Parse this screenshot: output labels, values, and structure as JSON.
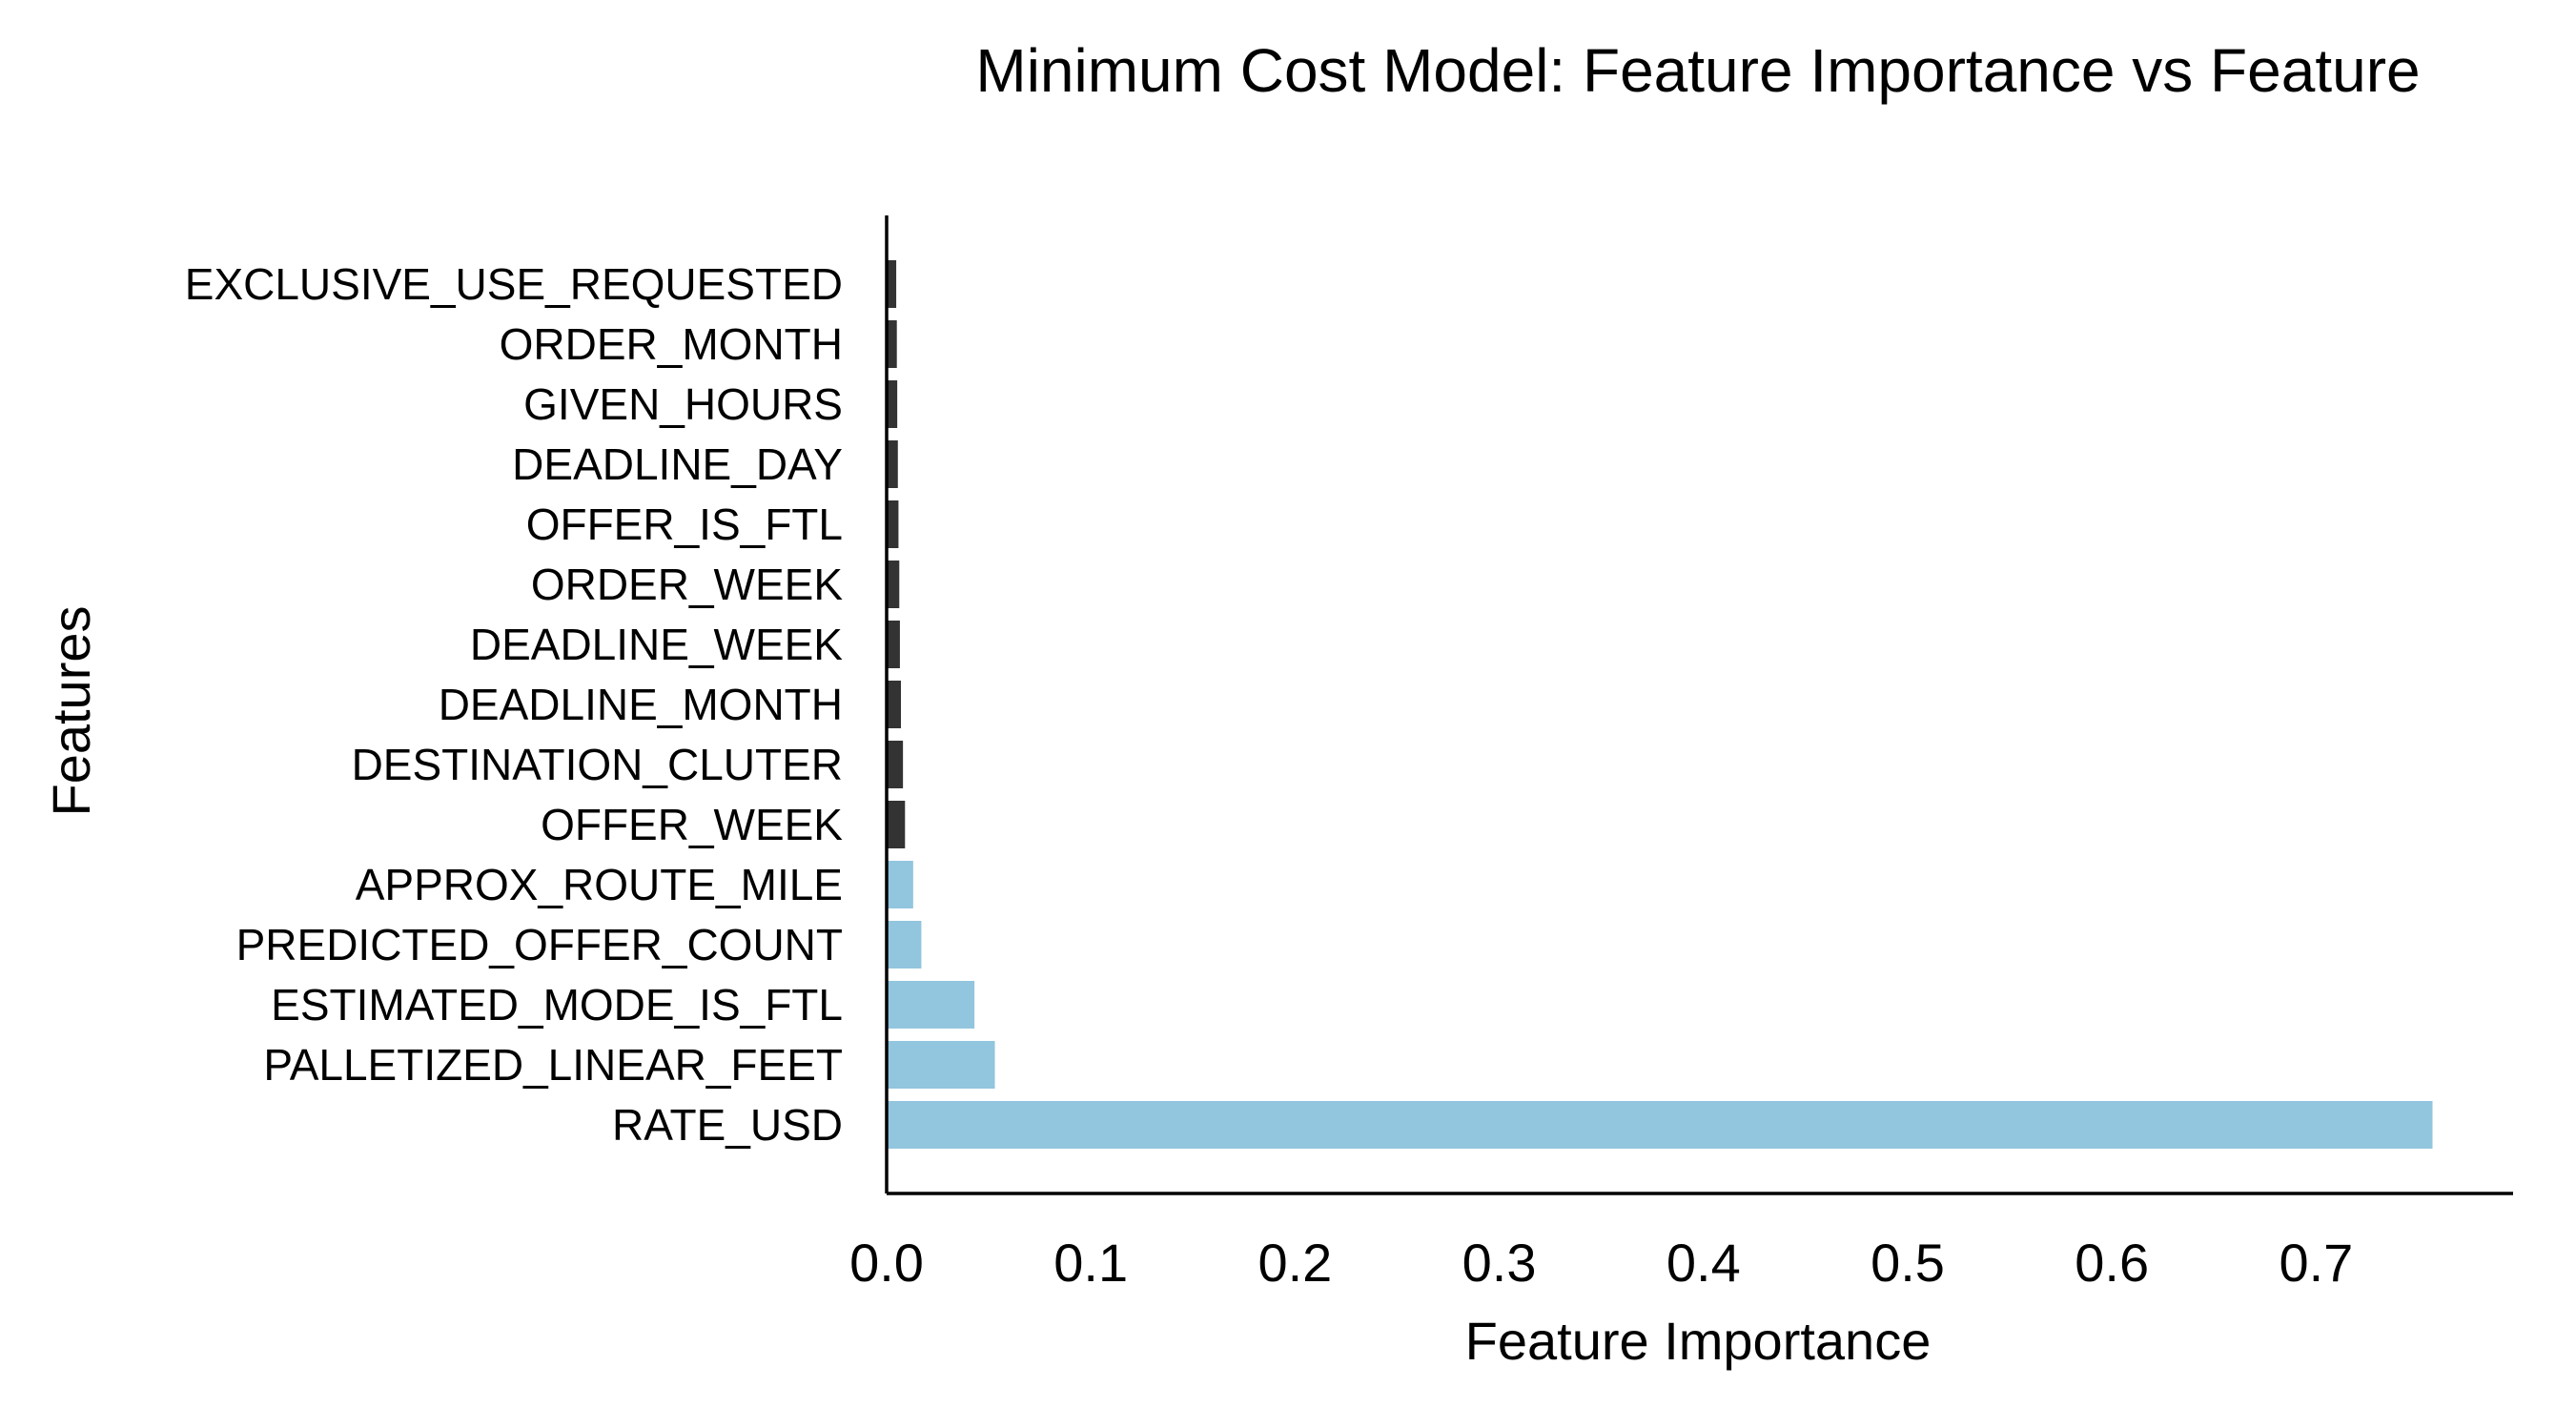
{
  "chart_data": {
    "type": "bar",
    "orientation": "horizontal",
    "title": "Minimum Cost Model: Feature Importance vs Feature",
    "xlabel": "Feature Importance",
    "ylabel": "Features",
    "xlim": [
      0,
      0.8
    ],
    "x_ticks": [
      "0.0",
      "0.1",
      "0.2",
      "0.3",
      "0.4",
      "0.5",
      "0.6",
      "0.7"
    ],
    "grid": false,
    "colors": {
      "top": "#92c5de",
      "rest": "#333333"
    },
    "categories": [
      "RATE_USD",
      "PALLETIZED_LINEAR_FEET",
      "ESTIMATED_MODE_IS_FTL",
      "PREDICTED_OFFER_COUNT",
      "APPROX_ROUTE_MILE",
      "OFFER_WEEK",
      "DESTINATION_CLUTER",
      "DEADLINE_MONTH",
      "DEADLINE_WEEK",
      "ORDER_WEEK",
      "OFFER_IS_FTL",
      "DEADLINE_DAY",
      "GIVEN_HOURS",
      "ORDER_MONTH",
      "EXCLUSIVE_USE_REQUESTED"
    ],
    "values": [
      0.757,
      0.053,
      0.043,
      0.017,
      0.013,
      0.009,
      0.008,
      0.007,
      0.0065,
      0.0062,
      0.0058,
      0.0055,
      0.0052,
      0.005,
      0.0047
    ],
    "highlighted_count": 5
  }
}
